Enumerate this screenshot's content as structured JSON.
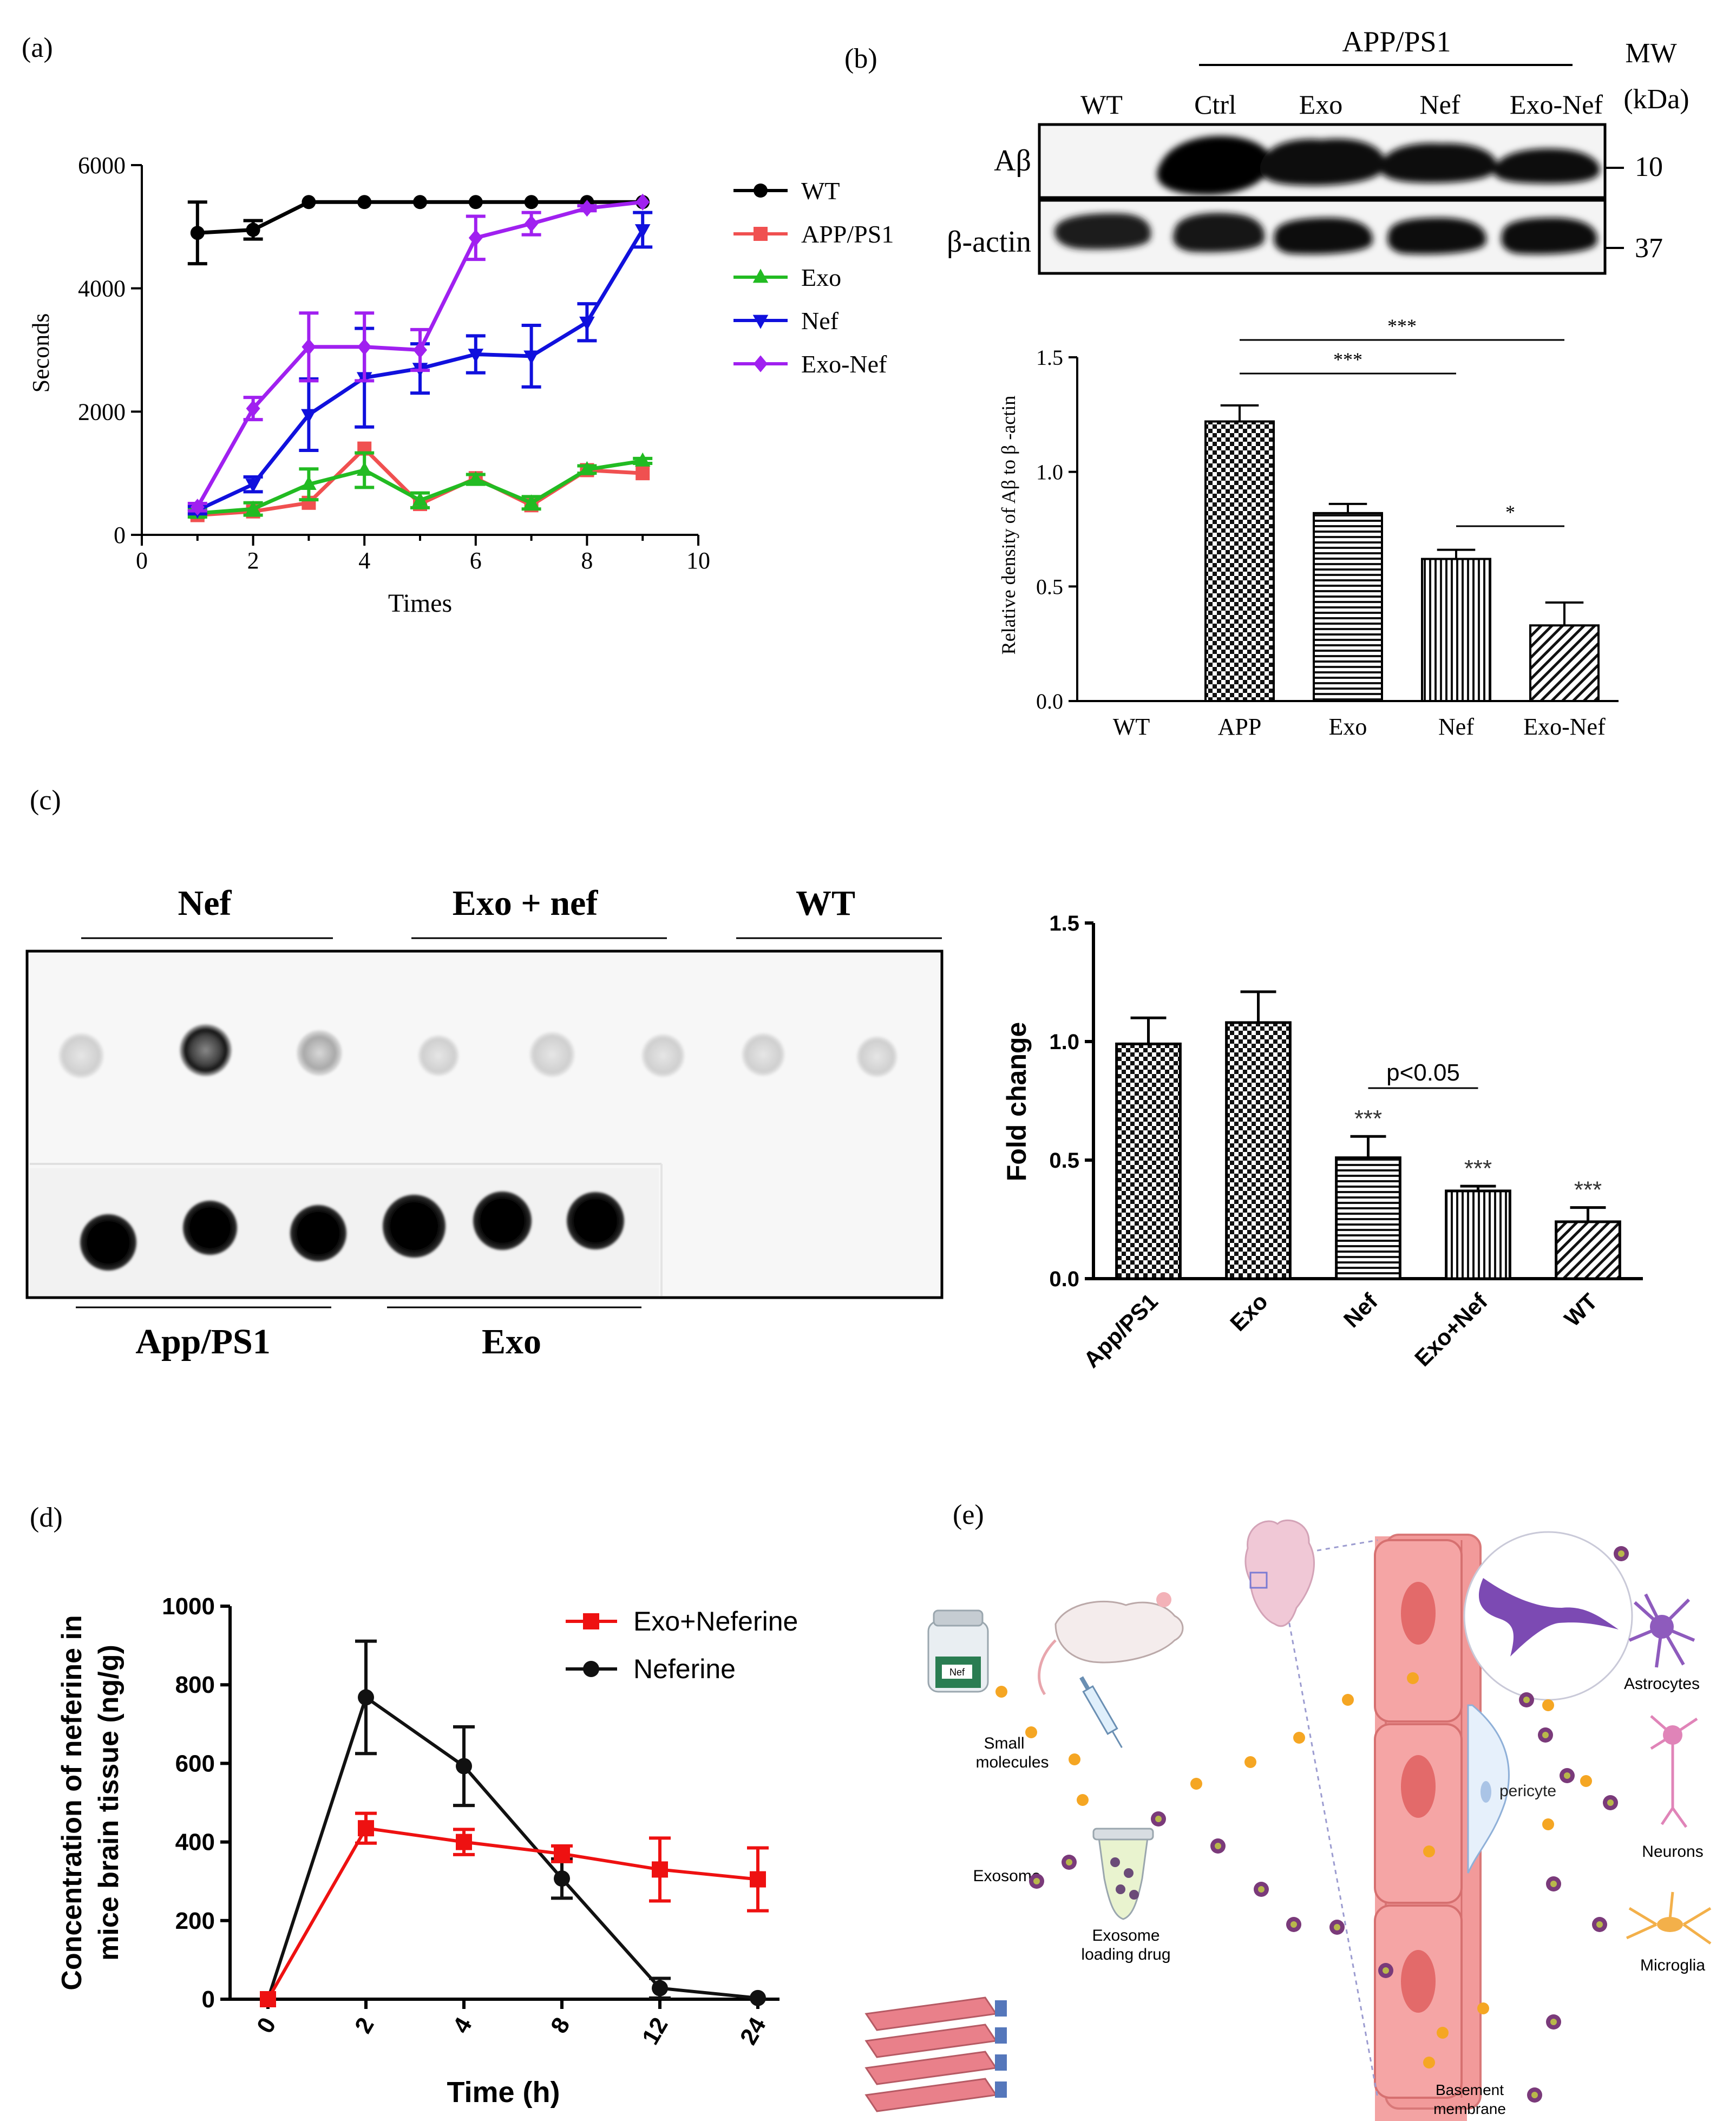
{
  "panel_labels": {
    "a": "(a)",
    "b": "(b)",
    "c": "(c)",
    "d": "(d)",
    "e": "(e)"
  },
  "chart_data": [
    {
      "id": "a",
      "type": "line",
      "title": "",
      "xlabel": "Times",
      "ylabel": "Seconds",
      "xlim": [
        0,
        10
      ],
      "ylim": [
        0,
        6000
      ],
      "xticks": [
        "0",
        "2",
        "4",
        "6",
        "8",
        "10"
      ],
      "yticks": [
        "0",
        "2000",
        "4000",
        "6000"
      ],
      "series": [
        {
          "name": "WT",
          "color": "#000000",
          "marker": "circle",
          "x": [
            1,
            2,
            3,
            4,
            5,
            6,
            7,
            8,
            9
          ],
          "y": [
            4900,
            4950,
            5400,
            5400,
            5400,
            5400,
            5400,
            5400,
            5400
          ],
          "err": [
            500,
            150,
            0,
            0,
            0,
            0,
            0,
            0,
            0
          ]
        },
        {
          "name": "APP/PS1",
          "color": "#f05050",
          "marker": "square",
          "x": [
            1,
            2,
            3,
            4,
            5,
            6,
            7,
            8,
            9
          ],
          "y": [
            320,
            380,
            520,
            1400,
            500,
            920,
            480,
            1050,
            1000
          ],
          "err": [
            0,
            0,
            0,
            0,
            0,
            0,
            0,
            0,
            0
          ]
        },
        {
          "name": "Exo",
          "color": "#22bb22",
          "marker": "triangle-up",
          "x": [
            1,
            2,
            3,
            4,
            5,
            6,
            7,
            8,
            9
          ],
          "y": [
            350,
            420,
            820,
            1050,
            560,
            900,
            520,
            1060,
            1200
          ],
          "err": [
            60,
            100,
            250,
            280,
            120,
            80,
            100,
            60,
            40
          ]
        },
        {
          "name": "Nef",
          "color": "#1010dd",
          "marker": "triangle-down",
          "x": [
            1,
            2,
            3,
            4,
            5,
            6,
            7,
            8,
            9
          ],
          "y": [
            400,
            820,
            1950,
            2550,
            2700,
            2930,
            2900,
            3450,
            4950
          ],
          "err": [
            60,
            120,
            580,
            800,
            400,
            300,
            500,
            300,
            280
          ]
        },
        {
          "name": "Exo-Nef",
          "color": "#a020f0",
          "marker": "diamond",
          "x": [
            1,
            2,
            3,
            4,
            5,
            6,
            7,
            8,
            9
          ],
          "y": [
            450,
            2050,
            3050,
            3050,
            3000,
            4820,
            5050,
            5300,
            5400
          ],
          "err": [
            60,
            180,
            550,
            550,
            330,
            350,
            180,
            40,
            0
          ]
        }
      ]
    },
    {
      "id": "b",
      "type": "bar",
      "ylabel": "Relative density of Aβ  to β -actin",
      "categories": [
        "WT",
        "APP",
        "Exo",
        "Nef",
        "Exo-Nef"
      ],
      "values": [
        0,
        1.22,
        0.82,
        0.62,
        0.33
      ],
      "err": [
        0,
        0.07,
        0.04,
        0.04,
        0.1
      ],
      "patterns": [
        "none",
        "checker",
        "hlines",
        "vlines",
        "diag"
      ],
      "ylim": [
        0,
        1.5
      ],
      "yticks": [
        "0.0",
        "0.5",
        "1.0",
        "1.5"
      ],
      "significance": [
        {
          "from": 1,
          "to": 3,
          "label": "***"
        },
        {
          "from": 1,
          "to": 4,
          "label": "***"
        },
        {
          "from": 3,
          "to": 4,
          "label": "*"
        }
      ]
    },
    {
      "id": "c",
      "type": "bar",
      "ylabel": "Fold change",
      "categories": [
        "App/PS1",
        "Exo",
        "Nef",
        "Exo+Nef",
        "WT"
      ],
      "values": [
        0.99,
        1.08,
        0.51,
        0.37,
        0.24
      ],
      "err": [
        0.11,
        0.13,
        0.09,
        0.02,
        0.06
      ],
      "patterns": [
        "checker",
        "checker",
        "hlines",
        "vlines",
        "diag"
      ],
      "star_labels": [
        "",
        "",
        "***",
        "***",
        "***"
      ],
      "ylim": [
        0,
        1.5
      ],
      "yticks": [
        "0.0",
        "0.5",
        "1.0",
        "1.5"
      ],
      "significance": [
        {
          "from": 2,
          "to": 3,
          "label": "p<0.05"
        }
      ]
    },
    {
      "id": "d",
      "type": "line",
      "xlabel": "Time (h)",
      "ylabel": "Concentration of neferine in mice brain tissue (ng/g)",
      "ylabel_lines": [
        "Concentration of neferine in",
        "mice brain tissue (ng/g)"
      ],
      "categories": [
        "0",
        "2",
        "4",
        "8",
        "12",
        "24"
      ],
      "ylim": [
        0,
        1000
      ],
      "yticks": [
        "0",
        "200",
        "400",
        "600",
        "800",
        "1000"
      ],
      "series": [
        {
          "name": "Exo+Neferine",
          "color": "#ee1111",
          "marker": "square",
          "values": [
            0,
            435,
            400,
            370,
            330,
            305
          ],
          "err": [
            0,
            38,
            32,
            20,
            80,
            80
          ]
        },
        {
          "name": "Neferine",
          "color": "#111111",
          "marker": "circle",
          "values": [
            0,
            768,
            593,
            307,
            28,
            3
          ],
          "err": [
            0,
            143,
            100,
            50,
            25,
            0
          ]
        }
      ]
    }
  ],
  "blot_b": {
    "group_label": "APP/PS1",
    "mw_label_1": "MW",
    "mw_label_2": "(kDa)",
    "lanes": [
      "WT",
      "Ctrl",
      "Exo",
      "Nef",
      "Exo-Nef"
    ],
    "rows": [
      "Aβ",
      "β-actin"
    ],
    "mw_values": [
      "10",
      "37"
    ]
  },
  "dot_blot_c": {
    "top_groups": [
      "Nef",
      "Exo + nef",
      "WT"
    ],
    "bottom_groups": [
      "App/PS1",
      "Exo"
    ]
  },
  "schematic_e": {
    "jar_label": "Nef",
    "small_molecules": [
      "Small",
      "molecules"
    ],
    "exosome": "Exosome",
    "loading": [
      "Exosome",
      "loading drug"
    ],
    "pericyte": "pericyte",
    "basement": [
      "Basement",
      "membrane"
    ],
    "astrocytes": "Astrocytes",
    "neurons": "Neurons",
    "microglia": "Microglia",
    "colors": {
      "vessel": "#f08a8a",
      "nucleus": "#e05a5a",
      "particle": "#f5a623",
      "exosome": "#7a3a7a"
    }
  }
}
